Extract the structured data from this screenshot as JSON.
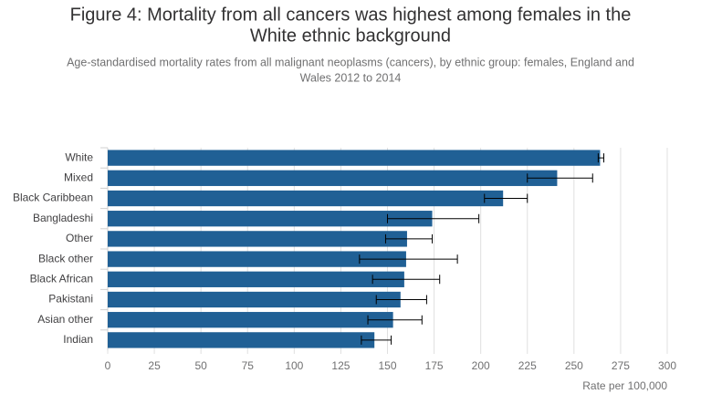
{
  "chart_data": {
    "type": "bar",
    "orientation": "horizontal",
    "title": [
      "Figure 4: Mortality from all cancers was highest among females in the",
      "White ethnic background"
    ],
    "subtitle": [
      "Age-standardised mortality rates from all malignant neoplasms (cancers), by ethnic group: females, England and",
      "Wales 2012 to 2014"
    ],
    "x_label": "Rate per 100,000",
    "categories": [
      "White",
      "Mixed",
      "Black Caribbean",
      "Bangladeshi",
      "Other",
      "Black other",
      "Black African",
      "Pakistani",
      "Asian other",
      "Indian"
    ],
    "values": [
      264,
      241,
      212,
      174,
      160.5,
      160,
      159,
      157,
      153,
      143
    ],
    "error_low": [
      263,
      225,
      202,
      150,
      149,
      135,
      142,
      144,
      139.5,
      136
    ],
    "error_high": [
      266,
      260,
      225,
      199,
      174,
      187.5,
      178,
      171,
      168.5,
      152
    ],
    "color": "#206095",
    "xlim": [
      0,
      300
    ],
    "xticks": [
      0,
      25,
      50,
      75,
      100,
      125,
      150,
      175,
      200,
      225,
      250,
      275,
      300
    ],
    "grid": true
  }
}
